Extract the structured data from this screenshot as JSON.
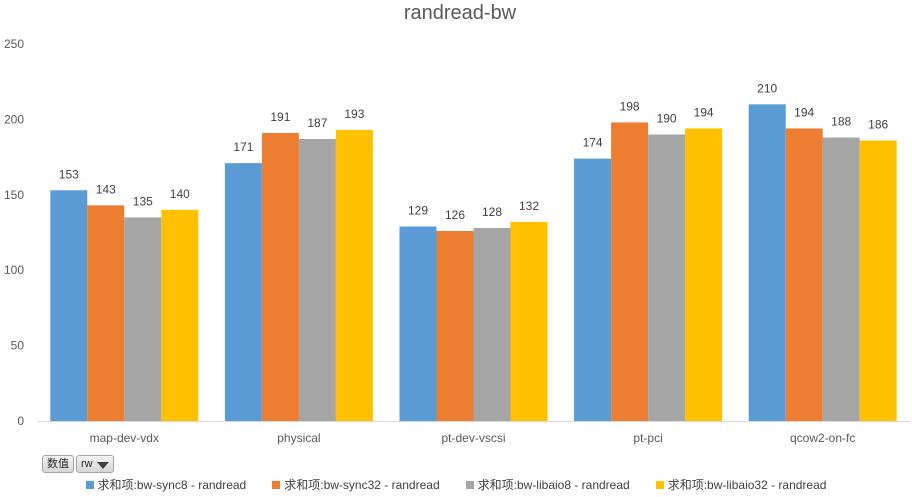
{
  "chart_data": {
    "type": "bar",
    "title": "randread-bw",
    "categories": [
      "map-dev-vdx",
      "physical",
      "pt-dev-vscsi",
      "pt-pci",
      "qcow2-on-fc"
    ],
    "series": [
      {
        "name": "求和项:bw-sync8 - randread",
        "color": "#5b9bd5",
        "values": [
          153,
          171,
          129,
          174,
          210
        ]
      },
      {
        "name": "求和项:bw-sync32 - randread",
        "color": "#ed7d31",
        "values": [
          143,
          191,
          126,
          198,
          194
        ]
      },
      {
        "name": "求和项:bw-libaio8 - randread",
        "color": "#a5a5a5",
        "values": [
          135,
          187,
          128,
          190,
          188
        ]
      },
      {
        "name": "求和项:bw-libaio32 - randread",
        "color": "#ffc000",
        "values": [
          140,
          193,
          132,
          194,
          186
        ]
      }
    ],
    "ylim": [
      0,
      250
    ],
    "yticks": [
      0,
      50,
      100,
      150,
      200,
      250
    ],
    "grid": false,
    "legend_position": "bottom"
  },
  "field_buttons": {
    "values_label": "数值",
    "filter_label": "rw"
  }
}
